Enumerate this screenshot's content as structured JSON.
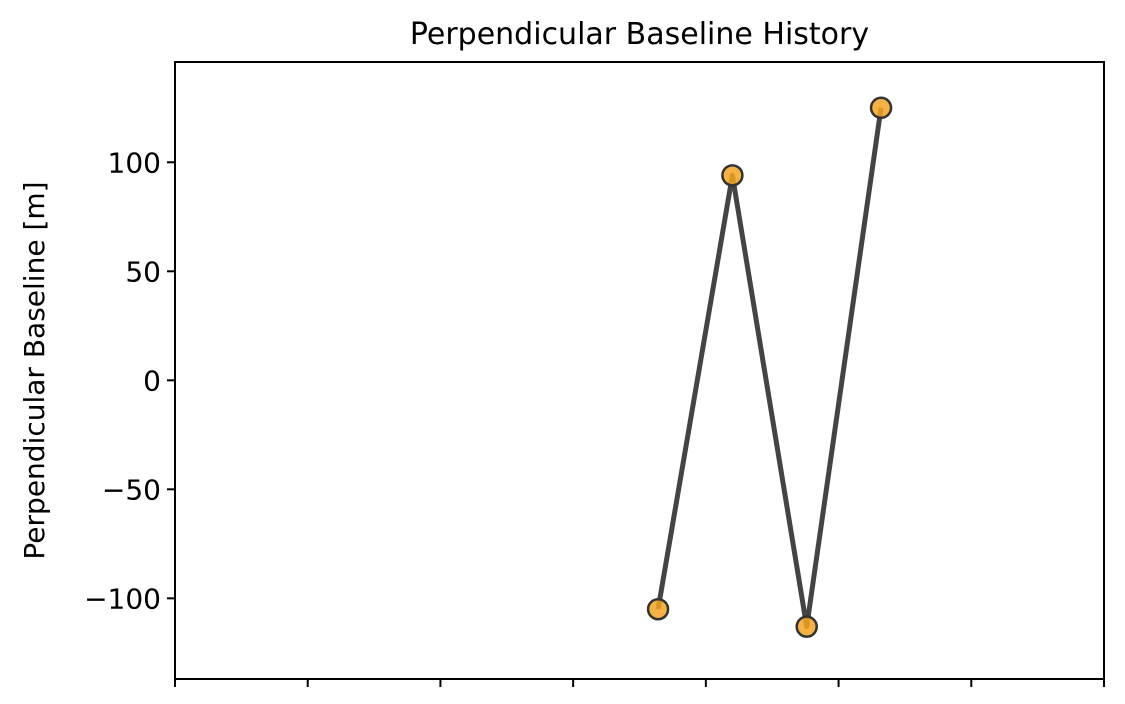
{
  "chart_data": {
    "type": "line",
    "title": "Perpendicular Baseline History",
    "xlabel": "",
    "ylabel": "Perpendicular Baseline [m]",
    "ylim": [
      -137,
      146
    ],
    "y_ticks": [
      {
        "value": 100,
        "label": "100"
      },
      {
        "value": 50,
        "label": "50"
      },
      {
        "value": 0,
        "label": "0"
      },
      {
        "value": -50,
        "label": "−50"
      },
      {
        "value": -100,
        "label": "−100"
      }
    ],
    "x_tick_count": 8,
    "grid": false,
    "series": [
      {
        "x": [
          4,
          4.2,
          4.4,
          4.6
        ],
        "y": [
          -105,
          94,
          -113,
          125
        ]
      }
    ],
    "colors": {
      "line": "#444444",
      "marker_fill": "#f5a623",
      "marker_edge": "#333333"
    }
  }
}
